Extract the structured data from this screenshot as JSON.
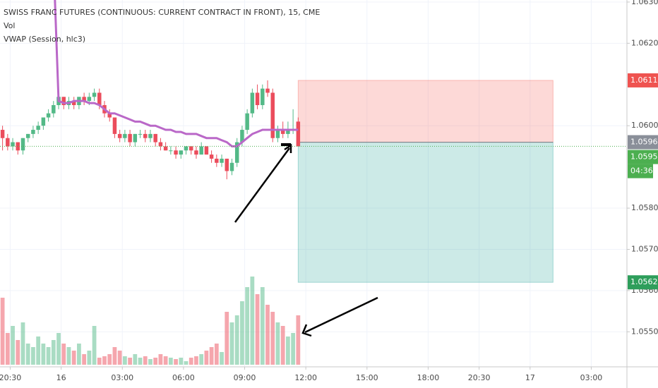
{
  "chart_data": {
    "type": "candlestick",
    "title": "SWISS FRANC FUTURES (CONTINUOUS: CURRENT CONTRACT IN FRONT), 15, CME",
    "indicators": [
      "Vol",
      "VWAP (Session, hlc3)"
    ],
    "up_color": "#53b987",
    "down_color": "#eb4d5c",
    "vwap_color": "#ba68c8",
    "open": [
      1.0599,
      1.0597,
      1.0595,
      1.0596,
      1.0594,
      1.0597,
      1.0598,
      1.0599,
      1.06,
      1.0602,
      1.0603,
      1.0605,
      1.0607,
      1.0605,
      1.0606,
      1.0605,
      1.0607,
      1.0606,
      1.0607,
      1.0608,
      1.0605,
      1.0603,
      1.0602,
      1.0598,
      1.0597,
      1.0598,
      1.0596,
      1.0598,
      1.0598,
      1.0597,
      1.0598,
      1.0596,
      1.0595,
      1.0594,
      1.0594,
      1.0593,
      1.0594,
      1.0595,
      1.0594,
      1.0593,
      1.0595,
      1.0593,
      1.0592,
      1.0591,
      1.0592,
      1.0589,
      1.0591,
      1.0596,
      1.0599,
      1.0603,
      1.0608,
      1.0605,
      1.0609,
      1.0608,
      1.0597,
      1.0599,
      1.0598,
      1.0599,
      1.0601
    ],
    "high": [
      1.06,
      1.0598,
      1.0597,
      1.0596,
      1.0597,
      1.0598,
      1.06,
      1.0601,
      1.0602,
      1.0604,
      1.0606,
      1.0608,
      1.0607,
      1.0607,
      1.0607,
      1.0607,
      1.0608,
      1.0608,
      1.0609,
      1.0609,
      1.0606,
      1.0604,
      1.0602,
      1.0599,
      1.0599,
      1.0599,
      1.0598,
      1.0599,
      1.0599,
      1.0599,
      1.0598,
      1.0597,
      1.0596,
      1.0595,
      1.0595,
      1.0594,
      1.0595,
      1.0595,
      1.0595,
      1.0596,
      1.0595,
      1.0594,
      1.0593,
      1.0593,
      1.0592,
      1.0592,
      1.0597,
      1.06,
      1.0604,
      1.0609,
      1.061,
      1.061,
      1.0611,
      1.0609,
      1.06,
      1.0601,
      1.0601,
      1.0604,
      1.0602
    ],
    "low": [
      1.0594,
      1.0594,
      1.0594,
      1.0593,
      1.0593,
      1.0596,
      1.0597,
      1.0598,
      1.0599,
      1.0601,
      1.0602,
      1.0604,
      1.0604,
      1.0604,
      1.0604,
      1.0604,
      1.0605,
      1.0605,
      1.0606,
      1.0604,
      1.0602,
      1.0601,
      1.0597,
      1.0596,
      1.0596,
      1.0595,
      1.0595,
      1.0597,
      1.0596,
      1.0596,
      1.0595,
      1.0594,
      1.0594,
      1.0593,
      1.0592,
      1.0592,
      1.0593,
      1.0593,
      1.0592,
      1.0593,
      1.0593,
      1.0591,
      1.059,
      1.059,
      1.0587,
      1.0588,
      1.059,
      1.0595,
      1.0598,
      1.0602,
      1.0604,
      1.0604,
      1.0607,
      1.0596,
      1.0596,
      1.0597,
      1.0597,
      1.0598,
      1.0595
    ],
    "close": [
      1.0597,
      1.0595,
      1.0596,
      1.0594,
      1.0597,
      1.0598,
      1.0599,
      1.06,
      1.0602,
      1.0603,
      1.0605,
      1.0607,
      1.0605,
      1.0606,
      1.0605,
      1.0607,
      1.0606,
      1.0607,
      1.0608,
      1.0605,
      1.0603,
      1.0602,
      1.0598,
      1.0597,
      1.0598,
      1.0596,
      1.0598,
      1.0598,
      1.0597,
      1.0598,
      1.0596,
      1.0595,
      1.0594,
      1.0594,
      1.0593,
      1.0594,
      1.0595,
      1.0594,
      1.0593,
      1.0595,
      1.0593,
      1.0592,
      1.0591,
      1.0592,
      1.0589,
      1.0591,
      1.0596,
      1.0599,
      1.0603,
      1.0608,
      1.0605,
      1.0609,
      1.0608,
      1.0597,
      1.0599,
      1.0598,
      1.0599,
      1.0599,
      1.0595
    ],
    "volume": [
      95,
      45,
      55,
      35,
      60,
      30,
      25,
      40,
      30,
      25,
      35,
      45,
      30,
      25,
      20,
      30,
      15,
      20,
      55,
      10,
      12,
      15,
      25,
      20,
      12,
      10,
      15,
      10,
      12,
      8,
      10,
      15,
      12,
      10,
      8,
      10,
      5,
      10,
      12,
      15,
      20,
      25,
      30,
      18,
      75,
      60,
      70,
      90,
      110,
      125,
      100,
      110,
      85,
      75,
      60,
      55,
      40,
      45,
      70
    ],
    "vwap": [
      null,
      null,
      null,
      null,
      null,
      null,
      null,
      null,
      null,
      null,
      1.064,
      1.0606,
      1.06055,
      1.06055,
      1.0606,
      1.0606,
      1.0606,
      1.06055,
      1.06055,
      1.0605,
      1.0604,
      1.0603,
      1.0603,
      1.06025,
      1.0602,
      1.06015,
      1.0601,
      1.0601,
      1.06005,
      1.06,
      1.06,
      1.05995,
      1.0599,
      1.0599,
      1.05985,
      1.05985,
      1.0598,
      1.0598,
      1.0598,
      1.05975,
      1.0597,
      1.0597,
      1.0597,
      1.05965,
      1.0596,
      1.0595,
      1.0595,
      1.0596,
      1.0597,
      1.0598,
      1.05985,
      1.0599,
      1.0599,
      1.0599,
      1.0599,
      1.0599,
      1.0599,
      1.0599,
      1.0599
    ],
    "xlim": [
      -0.5,
      122.5
    ],
    "xticks": [
      {
        "value": 1.5,
        "label": "20:30"
      },
      {
        "value": 11.5,
        "label": "16"
      },
      {
        "value": 23.5,
        "label": "03:00"
      },
      {
        "value": 35.5,
        "label": "06:00"
      },
      {
        "value": 47.5,
        "label": "09:00"
      },
      {
        "value": 59.5,
        "label": "12:00"
      },
      {
        "value": 71.5,
        "label": "15:00"
      },
      {
        "value": 83.5,
        "label": "18:00"
      },
      {
        "value": 93.5,
        "label": "20:30"
      },
      {
        "value": 103.5,
        "label": "17"
      },
      {
        "value": 115.5,
        "label": "03:00"
      }
    ],
    "ylim": [
      1.05415,
      1.06305
    ],
    "yticks": [
      {
        "value": 1.063,
        "label": "1.0630"
      },
      {
        "value": 1.062,
        "label": "1.0620"
      },
      {
        "value": 1.06,
        "label": "1.0600"
      },
      {
        "value": 1.058,
        "label": "1.0580"
      },
      {
        "value": 1.057,
        "label": "1.0570"
      },
      {
        "value": 1.056,
        "label": "1.0560"
      },
      {
        "value": 1.055,
        "label": "1.0550"
      }
    ],
    "last_price": 1.0595,
    "position": {
      "entry": 1.0596,
      "stop": 1.0611,
      "target": 1.0562,
      "start": 58,
      "end": 108
    },
    "price_tags": [
      {
        "value": 1.0611,
        "label": "1.0611",
        "color": "#ef5350"
      },
      {
        "value": 1.0596,
        "label": "1.0596",
        "color": "#8a8f99"
      },
      {
        "value": 1.0595,
        "label": "1.0595",
        "color": "#4caf50"
      },
      {
        "value": 1.0562,
        "label": "1.0562",
        "color": "#2e9e5b"
      }
    ],
    "countdown": "04:36"
  }
}
